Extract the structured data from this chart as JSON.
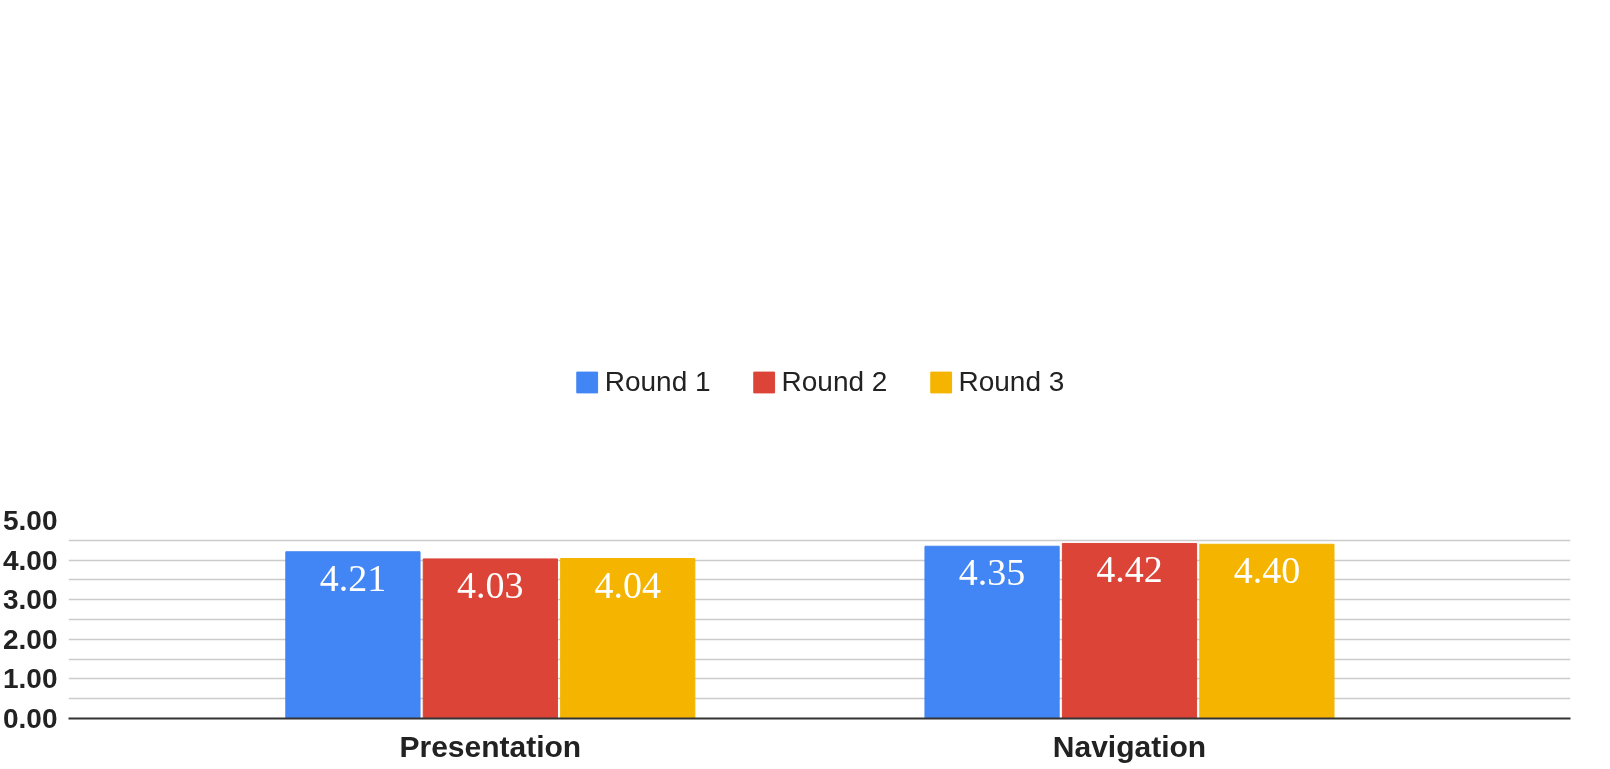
{
  "chart_data": {
    "type": "bar",
    "categories": [
      "Presentation",
      "Navigation"
    ],
    "series": [
      {
        "name": "Round 1",
        "color": "#4285f4",
        "values": [
          4.21,
          4.35
        ],
        "value_labels": [
          "4.21",
          "4.35"
        ]
      },
      {
        "name": "Round 2",
        "color": "#db4437",
        "values": [
          4.03,
          4.42
        ],
        "value_labels": [
          "4.03",
          "4.42"
        ]
      },
      {
        "name": "Round 3",
        "color": "#f4b400",
        "values": [
          4.04,
          4.4
        ],
        "value_labels": [
          "4.04",
          "4.40"
        ]
      }
    ],
    "ylim": [
      0,
      5
    ],
    "yticks": [
      {
        "value": 0,
        "label": "0.00"
      },
      {
        "value": 0.5,
        "label": null
      },
      {
        "value": 1,
        "label": "1.00"
      },
      {
        "value": 1.5,
        "label": null
      },
      {
        "value": 2,
        "label": "2.00"
      },
      {
        "value": 2.5,
        "label": null
      },
      {
        "value": 3,
        "label": "3.00"
      },
      {
        "value": 3.5,
        "label": null
      },
      {
        "value": 4,
        "label": "4.00"
      },
      {
        "value": 4.5,
        "label": null
      },
      {
        "value": 5,
        "label": "5.00"
      }
    ],
    "grid": "y",
    "legend": "top"
  }
}
